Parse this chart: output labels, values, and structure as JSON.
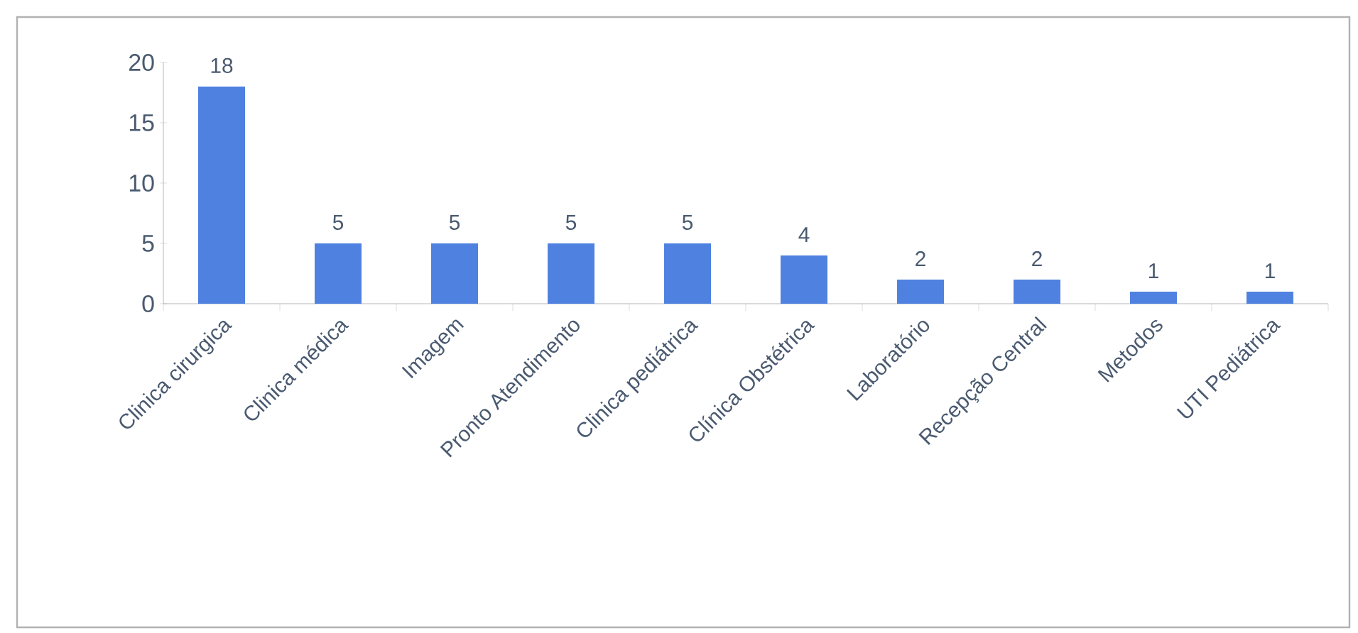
{
  "chart_data": {
    "type": "bar",
    "categories": [
      "Clinica cirurgica",
      "Clinica médica",
      "Imagem",
      "Pronto Atendimento",
      "Clinica pediátrica",
      "Clínica Obstétrica",
      "Laboratório",
      "Recepção Central",
      "Metodos",
      "UTI Pediátrica"
    ],
    "values": [
      18,
      5,
      5,
      5,
      5,
      4,
      2,
      2,
      1,
      1
    ],
    "color": "#4f81e0",
    "ylim": [
      0,
      20
    ],
    "yticks": [
      0,
      5,
      10,
      15,
      20
    ],
    "data_labels": true
  }
}
